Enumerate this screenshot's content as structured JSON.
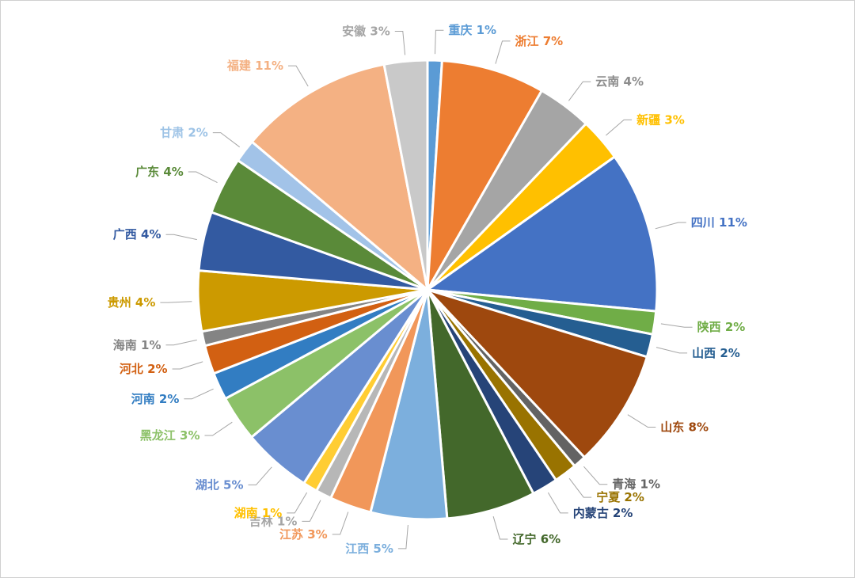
{
  "chart_data": {
    "type": "pie",
    "start_angle_deg": 0,
    "slices": [
      {
        "name": "重庆",
        "pct_label": "1%",
        "value": 1.0,
        "color": "#5b9bd5",
        "label_color": "#5b9bd5"
      },
      {
        "name": "浙江",
        "pct_label": "7%",
        "value": 7.2,
        "color": "#ed7d31",
        "label_color": "#ed7d31"
      },
      {
        "name": "云南",
        "pct_label": "4%",
        "value": 3.8,
        "color": "#a5a5a5",
        "label_color": "#8c8c8c"
      },
      {
        "name": "新疆",
        "pct_label": "3%",
        "value": 3.0,
        "color": "#ffc000",
        "label_color": "#ffc000"
      },
      {
        "name": "四川",
        "pct_label": "11%",
        "value": 11.2,
        "color": "#4472c4",
        "label_color": "#4472c4"
      },
      {
        "name": "陕西",
        "pct_label": "2%",
        "value": 1.6,
        "color": "#70ad47",
        "label_color": "#70ad47"
      },
      {
        "name": "山西",
        "pct_label": "2%",
        "value": 1.6,
        "color": "#255e91",
        "label_color": "#255e91"
      },
      {
        "name": "山东",
        "pct_label": "8%",
        "value": 8.2,
        "color": "#9e480e",
        "label_color": "#9e480e"
      },
      {
        "name": "青海",
        "pct_label": "1%",
        "value": 0.9,
        "color": "#636363",
        "label_color": "#636363"
      },
      {
        "name": "宁夏",
        "pct_label": "2%",
        "value": 1.6,
        "color": "#997300",
        "label_color": "#997300"
      },
      {
        "name": "内蒙古",
        "pct_label": "2%",
        "value": 1.8,
        "color": "#264478",
        "label_color": "#264478"
      },
      {
        "name": "辽宁",
        "pct_label": "6%",
        "value": 6.2,
        "color": "#43682b",
        "label_color": "#43682b"
      },
      {
        "name": "江西",
        "pct_label": "5%",
        "value": 5.3,
        "color": "#7cafdd",
        "label_color": "#7cafdd"
      },
      {
        "name": "江苏",
        "pct_label": "3%",
        "value": 2.9,
        "color": "#f1975a",
        "label_color": "#f1975a"
      },
      {
        "name": "吉林",
        "pct_label": "1%",
        "value": 1.1,
        "color": "#b7b7b7",
        "label_color": "#a5a5a5"
      },
      {
        "name": "湖南",
        "pct_label": "1%",
        "value": 1.0,
        "color": "#ffcd33",
        "label_color": "#ffc000"
      },
      {
        "name": "湖北",
        "pct_label": "5%",
        "value": 4.8,
        "color": "#698ed0",
        "label_color": "#698ed0"
      },
      {
        "name": "黑龙江",
        "pct_label": "3%",
        "value": 3.2,
        "color": "#8cc168",
        "label_color": "#8cc168"
      },
      {
        "name": "河南",
        "pct_label": "2%",
        "value": 1.9,
        "color": "#327dc2",
        "label_color": "#327dc2"
      },
      {
        "name": "河北",
        "pct_label": "2%",
        "value": 2.0,
        "color": "#d26012",
        "label_color": "#d26012"
      },
      {
        "name": "海南",
        "pct_label": "1%",
        "value": 1.0,
        "color": "#848484",
        "label_color": "#848484"
      },
      {
        "name": "贵州",
        "pct_label": "4%",
        "value": 4.2,
        "color": "#cc9a00",
        "label_color": "#cc9a00"
      },
      {
        "name": "广西",
        "pct_label": "4%",
        "value": 4.1,
        "color": "#335aa1",
        "label_color": "#335aa1"
      },
      {
        "name": "广东",
        "pct_label": "4%",
        "value": 4.0,
        "color": "#5a8a39",
        "label_color": "#5a8a39"
      },
      {
        "name": "甘肃",
        "pct_label": "2%",
        "value": 1.6,
        "color": "#a2c3e8",
        "label_color": "#9dc3e6"
      },
      {
        "name": "福建",
        "pct_label": "11%",
        "value": 10.7,
        "color": "#f4b183",
        "label_color": "#f4b183"
      },
      {
        "name": "安徽",
        "pct_label": "3%",
        "value": 3.0,
        "color": "#c9c9c9",
        "label_color": "#a5a5a5"
      }
    ]
  }
}
